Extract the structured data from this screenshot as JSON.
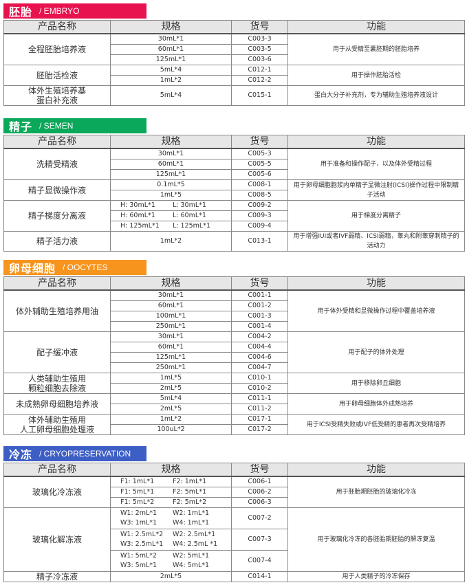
{
  "headers": {
    "name": "产品名称",
    "spec": "规格",
    "code": "货号",
    "function": "功能"
  },
  "sections": [
    {
      "title_cn": "胚胎",
      "title_en": "/ EMBRYO",
      "color": "#e8124f",
      "products": [
        {
          "name": "全程胚胎培养液",
          "function": "用于从受精至囊胚期的胚胎培养",
          "variants": [
            {
              "spec": [
                "30mL*1"
              ],
              "code": "C003-3"
            },
            {
              "spec": [
                "60mL*1"
              ],
              "code": "C003-5"
            },
            {
              "spec": [
                "125mL*1"
              ],
              "code": "C003-6"
            }
          ]
        },
        {
          "name": "胚胎活检液",
          "function": "用于操作胚胎活检",
          "variants": [
            {
              "spec": [
                "5mL*4"
              ],
              "code": "C012-1"
            },
            {
              "spec": [
                "1mL*2"
              ],
              "code": "C012-2"
            }
          ]
        },
        {
          "name": "体外生殖培养基\n蛋白补充液",
          "function": "蛋白大分子补充剂，专为辅助生殖培养液设计",
          "variants": [
            {
              "spec": [
                "5mL*4"
              ],
              "code": "C015-1"
            }
          ]
        }
      ]
    },
    {
      "title_cn": "精子",
      "title_en": "/ SEMEN",
      "color": "#0aa85a",
      "products": [
        {
          "name": "洗精受精液",
          "function": "用于准备和操作配子，以及体外受精过程",
          "variants": [
            {
              "spec": [
                "30mL*1"
              ],
              "code": "C005-3"
            },
            {
              "spec": [
                "60mL*1"
              ],
              "code": "C005-5"
            },
            {
              "spec": [
                "125mL*1"
              ],
              "code": "C005-6"
            }
          ]
        },
        {
          "name": "精子显微操作液",
          "function": "用于卵母细胞胞浆内单精子显微注射(ICSI)操作过程中限制精子活动",
          "variants": [
            {
              "spec": [
                "0.1mL*5"
              ],
              "code": "C008-1"
            },
            {
              "spec": [
                "1mL*5"
              ],
              "code": "C008-5"
            }
          ]
        },
        {
          "name": "精子梯度分离液",
          "function": "用于梯度分离精子",
          "variants": [
            {
              "spec": [
                "H: 30mL*1",
                "L: 30mL*1"
              ],
              "code": "C009-2"
            },
            {
              "spec": [
                "H: 60mL*1",
                "L: 60mL*1"
              ],
              "code": "C009-3"
            },
            {
              "spec": [
                "H: 125mL*1",
                "L: 125mL*1"
              ],
              "code": "C009-4"
            }
          ]
        },
        {
          "name": "精子活力液",
          "function": "用于增强IUI或者IVF弱精、ICSI弱精，睾丸和附睾穿刺精子的活动力",
          "variants": [
            {
              "spec": [
                "1mL*2"
              ],
              "code": "C013-1"
            }
          ]
        }
      ]
    },
    {
      "title_cn": "卵母细胞",
      "title_en": "/ OOCYTES",
      "color": "#f7941d",
      "products": [
        {
          "name": "体外辅助生殖培养用油",
          "function": "用于体外受精和显微操作过程中覆盖培养液",
          "variants": [
            {
              "spec": [
                "30mL*1"
              ],
              "code": "C001-1"
            },
            {
              "spec": [
                "60mL*1"
              ],
              "code": "C001-2"
            },
            {
              "spec": [
                "100mL*1"
              ],
              "code": "C001-3"
            },
            {
              "spec": [
                "250mL*1"
              ],
              "code": "C001-4"
            }
          ]
        },
        {
          "name": "配子缓冲液",
          "function": "用于配子的体外处理",
          "variants": [
            {
              "spec": [
                "30mL*1"
              ],
              "code": "C004-2"
            },
            {
              "spec": [
                "60mL*1"
              ],
              "code": "C004-4"
            },
            {
              "spec": [
                "125mL*1"
              ],
              "code": "C004-6"
            },
            {
              "spec": [
                "250mL*1"
              ],
              "code": "C004-7"
            }
          ]
        },
        {
          "name": "人类辅助生殖用\n颗粒细胞去除液",
          "function": "用于移除卵丘细胞",
          "variants": [
            {
              "spec": [
                "1mL*5"
              ],
              "code": "C010-1"
            },
            {
              "spec": [
                "2mL*5"
              ],
              "code": "C010-2"
            }
          ]
        },
        {
          "name": "未成熟卵母细胞培养液",
          "function": "用于卵母细胞体外成熟培养",
          "variants": [
            {
              "spec": [
                "5mL*4"
              ],
              "code": "C011-1"
            },
            {
              "spec": [
                "2mL*5"
              ],
              "code": "C011-2"
            }
          ]
        },
        {
          "name": "体外辅助生殖用\n人工卵母细胞处理液",
          "function": "用于ICSI受精失败或IVF低受精的患者再次受精培养",
          "variants": [
            {
              "spec": [
                "1mL*2"
              ],
              "code": "C017-1"
            },
            {
              "spec": [
                "100uL*2"
              ],
              "code": "C017-2"
            }
          ]
        }
      ]
    },
    {
      "title_cn": "冷冻",
      "title_en": "/ CRYOPRESERVATION",
      "color": "#3d5ec4",
      "products": [
        {
          "name": "玻璃化冷冻液",
          "function": "用于胚胎期胚胎的玻璃化冷冻",
          "variants": [
            {
              "spec": [
                "F1: 1mL*1",
                "F2: 1mL*1"
              ],
              "code": "C006-1"
            },
            {
              "spec": [
                "F1: 5mL*1",
                "F2: 5mL*1"
              ],
              "code": "C006-2"
            },
            {
              "spec": [
                "F1: 5mL*2",
                "F2: 5mL*2"
              ],
              "code": "C006-3"
            }
          ]
        },
        {
          "name": "玻璃化解冻液",
          "function": "用于玻璃化冷冻的各胚胎期胚胎的解冻复温",
          "variants": [
            {
              "spec": [
                "W1: 2mL*1",
                "W2: 1mL*1",
                "W3: 1mL*1",
                "W4: 1mL*1"
              ],
              "code": "C007-2"
            },
            {
              "spec": [
                "W1: 2.5mL*2",
                "W2: 2.5mL*1",
                "W3: 2.5mL*1",
                "W4: 2.5mL *1"
              ],
              "code": "C007-3"
            },
            {
              "spec": [
                "W1: 5mL*2",
                "W2: 5mL*1",
                "W3: 5mL*1",
                "W4: 5mL*1"
              ],
              "code": "C007-4"
            }
          ]
        },
        {
          "name": "精子冷冻液",
          "function": "用于人类精子的冷冻保存",
          "variants": [
            {
              "spec": [
                "2mL*5"
              ],
              "code": "C014-1"
            }
          ]
        }
      ]
    }
  ]
}
